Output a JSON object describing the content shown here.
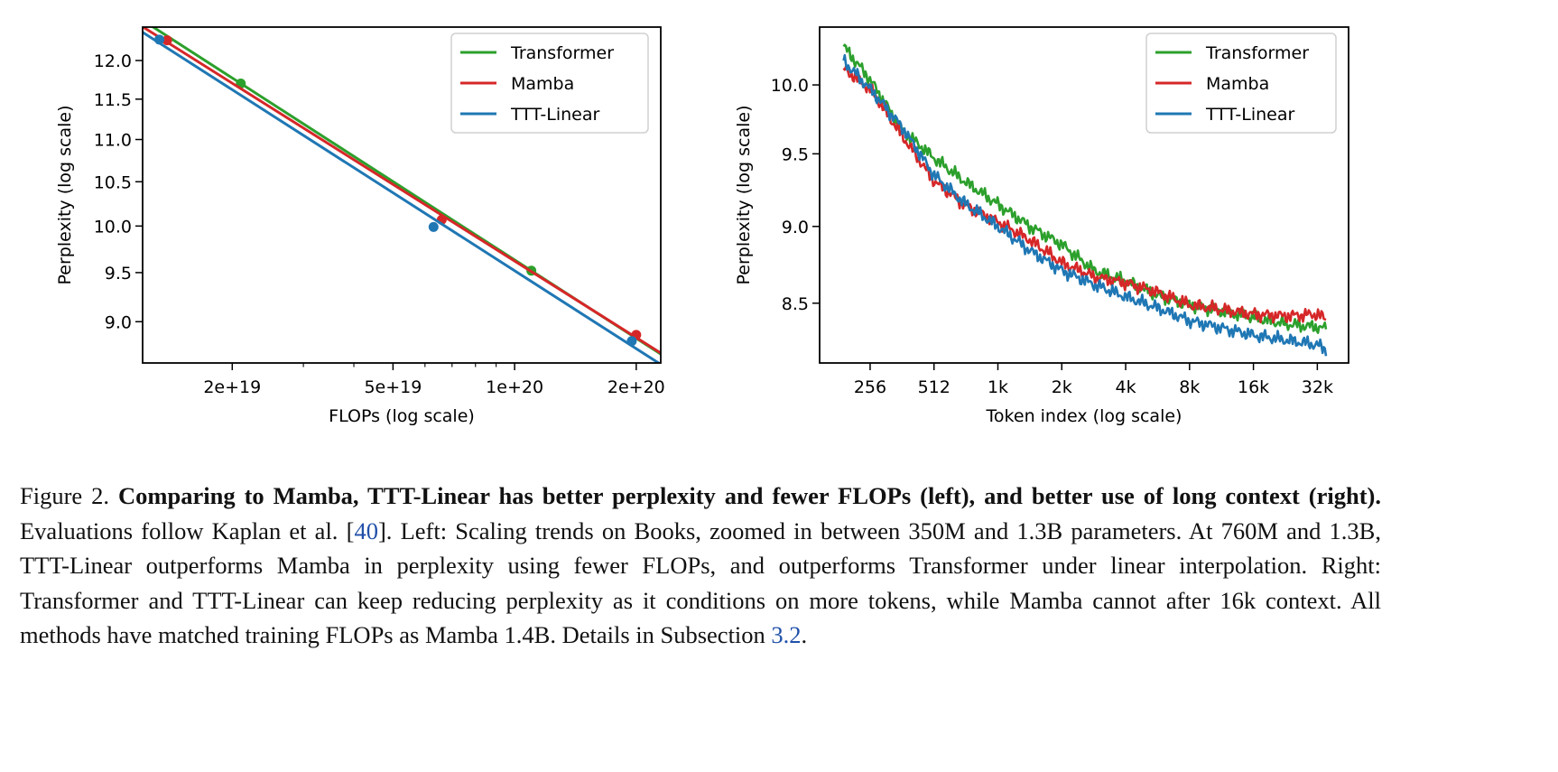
{
  "chart_data": [
    {
      "type": "line",
      "title": "",
      "xlabel": "FLOPs (log scale)",
      "ylabel": "Perplexity (log scale)",
      "xscale": "log",
      "yscale": "log",
      "xlim": [
        1.2e+19,
        2.3e+20
      ],
      "ylim": [
        8.6,
        12.45
      ],
      "grid": false,
      "legend_position": "top-right",
      "xticks": [
        {
          "value": 2e+19,
          "label": "2e+19"
        },
        {
          "value": 5e+19,
          "label": "5e+19"
        },
        {
          "value": 1e+20,
          "label": "1e+20"
        },
        {
          "value": 2e+20,
          "label": "2e+20"
        }
      ],
      "xminor": [
        3e+19,
        4e+19,
        6e+19,
        7e+19,
        8e+19,
        9e+19
      ],
      "yticks": [
        {
          "value": 12.0,
          "label": "12.0"
        },
        {
          "value": 11.5,
          "label": "11.5"
        },
        {
          "value": 11.0,
          "label": "11.0"
        },
        {
          "value": 10.5,
          "label": "10.5"
        },
        {
          "value": 10.0,
          "label": "10.0"
        },
        {
          "value": 9.5,
          "label": "9.5"
        },
        {
          "value": 9.0,
          "label": "9.0"
        }
      ],
      "series": [
        {
          "name": "Transformer",
          "color": "#2ca02c",
          "points": [
            [
              2.1e+19,
              11.7
            ],
            [
              1.1e+20,
              9.52
            ]
          ],
          "fit_slope": -0.1245
        },
        {
          "name": "Mamba",
          "color": "#d62728",
          "points": [
            [
              1.38e+19,
              12.27
            ],
            [
              6.6e+19,
              10.07
            ],
            [
              2e+20,
              8.87
            ]
          ]
        },
        {
          "name": "TTT-Linear",
          "color": "#1f77b4",
          "points": [
            [
              1.32e+19,
              12.28
            ],
            [
              6.3e+19,
              9.99
            ],
            [
              1.95e+20,
              8.81
            ]
          ]
        }
      ]
    },
    {
      "type": "line",
      "title": "",
      "xlabel": "Token index (log scale)",
      "ylabel": "Perplexity (log scale)",
      "xscale": "log2",
      "yscale": "log",
      "xlim": [
        148,
        46000
      ],
      "ylim": [
        8.13,
        10.44
      ],
      "grid": false,
      "legend_position": "top-right",
      "xticks": [
        {
          "value": 256,
          "label": "256"
        },
        {
          "value": 512,
          "label": "512"
        },
        {
          "value": 1024,
          "label": "1k"
        },
        {
          "value": 2048,
          "label": "2k"
        },
        {
          "value": 4096,
          "label": "4k"
        },
        {
          "value": 8192,
          "label": "8k"
        },
        {
          "value": 16384,
          "label": "16k"
        },
        {
          "value": 32768,
          "label": "32k"
        }
      ],
      "yticks": [
        {
          "value": 10.0,
          "label": "10.0"
        },
        {
          "value": 9.5,
          "label": "9.5"
        },
        {
          "value": 9.0,
          "label": "9.0"
        },
        {
          "value": 8.5,
          "label": "8.5"
        }
      ],
      "series": [
        {
          "name": "Transformer",
          "color": "#2ca02c",
          "x": [
            192,
            256,
            362,
            512,
            724,
            1024,
            1448,
            2048,
            2896,
            4096,
            5793,
            8192,
            16384,
            23170,
            32768,
            36000
          ],
          "y": [
            10.29,
            10.04,
            9.67,
            9.47,
            9.3,
            9.15,
            9.0,
            8.88,
            8.71,
            8.64,
            8.55,
            8.49,
            8.41,
            8.37,
            8.35,
            8.34
          ]
        },
        {
          "name": "Mamba",
          "color": "#d62728",
          "x": [
            192,
            256,
            362,
            512,
            724,
            1024,
            1448,
            2048,
            2896,
            4096,
            5793,
            8192,
            16384,
            23170,
            32768,
            36000
          ],
          "y": [
            10.12,
            9.97,
            9.63,
            9.31,
            9.14,
            9.03,
            8.91,
            8.76,
            8.67,
            8.63,
            8.57,
            8.49,
            8.43,
            8.42,
            8.43,
            8.4
          ]
        },
        {
          "name": "TTT-Linear",
          "color": "#1f77b4",
          "x": [
            192,
            256,
            362,
            512,
            724,
            1024,
            1448,
            2048,
            2896,
            4096,
            5793,
            8192,
            16384,
            23170,
            32768,
            36000
          ],
          "y": [
            10.18,
            9.97,
            9.69,
            9.35,
            9.15,
            9.0,
            8.84,
            8.71,
            8.62,
            8.54,
            8.47,
            8.39,
            8.3,
            8.27,
            8.24,
            8.21
          ]
        }
      ]
    }
  ],
  "caption": {
    "label": "Figure 2.",
    "bold": "Comparing to Mamba, TTT-Linear has better perplexity and fewer FLOPs (left), and better use of long context (right).",
    "text1": "Evaluations follow Kaplan et al. [",
    "ref1": "40",
    "text2": "]. Left: Scaling trends on Books, zoomed in between 350M and 1.3B parameters.  At 760M and 1.3B, TTT-Linear outperforms Mamba in perplexity using fewer FLOPs, and outperforms Transformer under linear interpolation. Right: Transformer and TTT-Linear can keep reducing perplexity as it conditions on more tokens, while Mamba cannot after 16k context. All methods have matched training FLOPs as Mamba 1.4B. Details in Subsection ",
    "ref2": "3.2",
    "text3": "."
  }
}
